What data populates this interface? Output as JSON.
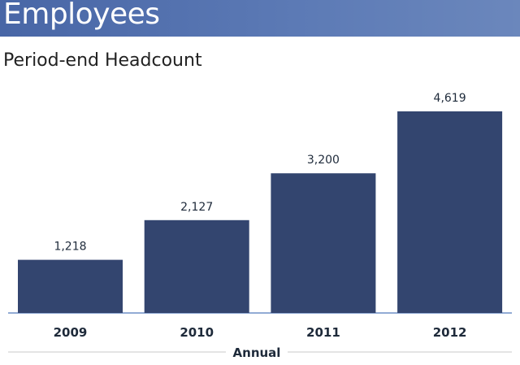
{
  "header": {
    "title": "Employees"
  },
  "chart_data": {
    "type": "bar",
    "title": "Period-end Headcount",
    "xlabel": "Annual",
    "ylabel": "",
    "categories": [
      "2009",
      "2010",
      "2011",
      "2012"
    ],
    "values": [
      1218,
      2127,
      3200,
      4619
    ],
    "value_labels": [
      "1,218",
      "2,127",
      "3,200",
      "4,619"
    ],
    "ylim": [
      0,
      4619
    ],
    "grid": false,
    "bar_color": "#33456f",
    "axis_color": "#6f8fc7",
    "header_color": "#5470ae"
  }
}
